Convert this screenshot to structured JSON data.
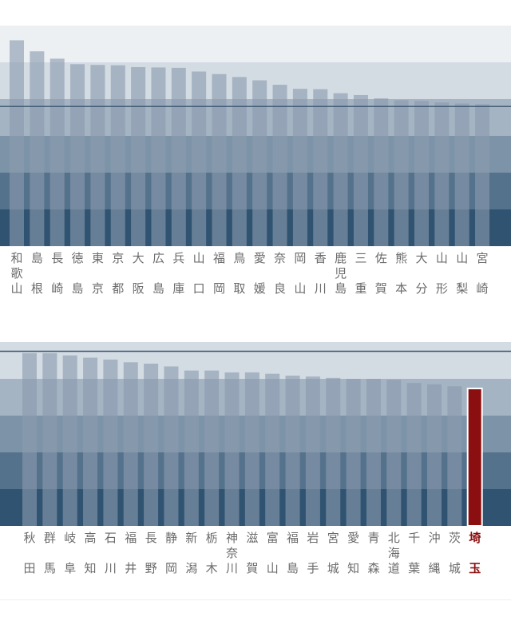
{
  "chart_data": [
    {
      "type": "bar",
      "categories": [
        [
          "和",
          "歌",
          "山"
        ],
        [
          "島",
          "根"
        ],
        [
          "長",
          "崎"
        ],
        [
          "徳",
          "島"
        ],
        [
          "東",
          "京"
        ],
        [
          "京",
          "都"
        ],
        [
          "大",
          "阪"
        ],
        [
          "広",
          "島"
        ],
        [
          "兵",
          "庫"
        ],
        [
          "山",
          "口"
        ],
        [
          "福",
          "岡"
        ],
        [
          "鳥",
          "取"
        ],
        [
          "愛",
          "媛"
        ],
        [
          "奈",
          "良"
        ],
        [
          "岡",
          "山"
        ],
        [
          "香",
          "川"
        ],
        [
          "鹿",
          "児",
          "島"
        ],
        [
          "三",
          "重"
        ],
        [
          "佐",
          "賀"
        ],
        [
          "熊",
          "本"
        ],
        [
          "大",
          "分"
        ],
        [
          "山",
          "形"
        ],
        [
          "山",
          "梨"
        ],
        [
          "宮",
          "崎"
        ]
      ],
      "values": [
        5.6,
        5.3,
        5.1,
        4.95,
        4.93,
        4.92,
        4.87,
        4.86,
        4.85,
        4.75,
        4.68,
        4.6,
        4.51,
        4.39,
        4.28,
        4.27,
        4.16,
        4.11,
        4.02,
        3.97,
        3.95,
        3.91,
        3.88,
        3.86
      ],
      "reference_line": 3.8,
      "ylim": [
        0,
        6.0
      ],
      "bands": 6,
      "colors": {
        "bar": "#8a9bae",
        "highlight": "#8b0f10",
        "bands": [
          "#edf0f3",
          "#d3dbe3",
          "#a4b4c3",
          "#7d94a8",
          "#55728c",
          "#2f5370"
        ],
        "ref_line": "#3b556e",
        "label": "#6b6b6b"
      }
    },
    {
      "type": "bar",
      "categories": [
        [
          "秋",
          "田"
        ],
        [
          "群",
          "馬"
        ],
        [
          "岐",
          "阜"
        ],
        [
          "高",
          "知"
        ],
        [
          "石",
          "川"
        ],
        [
          "福",
          "井"
        ],
        [
          "長",
          "野"
        ],
        [
          "静",
          "岡"
        ],
        [
          "新",
          "潟"
        ],
        [
          "栃",
          "木"
        ],
        [
          "神",
          "奈",
          "川"
        ],
        [
          "滋",
          "賀"
        ],
        [
          "富",
          "山"
        ],
        [
          "福",
          "島"
        ],
        [
          "岩",
          "手"
        ],
        [
          "宮",
          "城"
        ],
        [
          "愛",
          "知"
        ],
        [
          "青",
          "森"
        ],
        [
          "北",
          "海",
          "道"
        ],
        [
          "千",
          "葉"
        ],
        [
          "沖",
          "縄"
        ],
        [
          "茨",
          "城"
        ],
        [
          "埼",
          "玉"
        ]
      ],
      "values": [
        3.76,
        3.76,
        3.71,
        3.66,
        3.62,
        3.56,
        3.53,
        3.47,
        3.38,
        3.38,
        3.34,
        3.34,
        3.31,
        3.27,
        3.25,
        3.22,
        3.2,
        3.2,
        3.18,
        3.11,
        3.08,
        3.04,
        2.99
      ],
      "highlight_index": 22,
      "reference_line": 3.8,
      "ylim": [
        0,
        4.8
      ],
      "bands": 5,
      "colors": {
        "bar": "#8a9bae",
        "highlight": "#8b0f10",
        "bands": [
          "#edf0f3",
          "#d3dbe3",
          "#a4b4c3",
          "#7d94a8",
          "#55728c",
          "#2f5370"
        ],
        "ref_line": "#3b556e",
        "label": "#6b6b6b"
      }
    }
  ]
}
